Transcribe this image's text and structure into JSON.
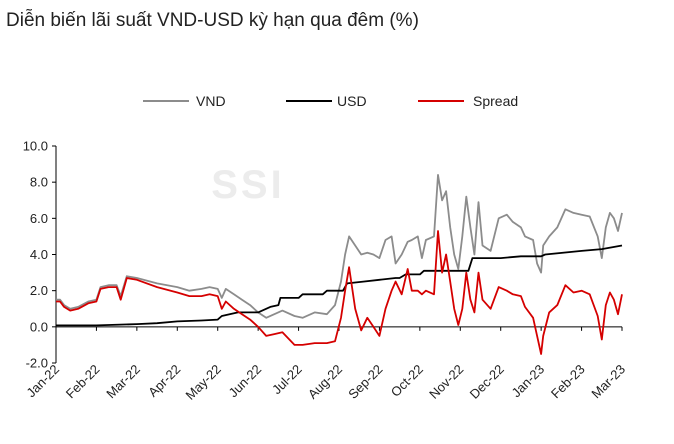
{
  "chart_data": {
    "type": "line",
    "title": "Diễn biến lãi suất VND-USD kỳ hạn qua đêm (%)",
    "watermark": "SSI",
    "xlabel": "",
    "ylabel": "",
    "ylim": [
      -2.0,
      10.0
    ],
    "yticks": [
      "10.0",
      "8.0",
      "6.0",
      "4.0",
      "2.0",
      "0.0",
      "-2.0"
    ],
    "xticks": [
      "Jan-22",
      "Feb-22",
      "Mar-22",
      "Apr-22",
      "May-22",
      "Jun-22",
      "Jul-22",
      "Aug-22",
      "Sep-22",
      "Oct-22",
      "Nov-22",
      "Dec-22",
      "Jan-23",
      "Feb-23",
      "Mar-23"
    ],
    "legend_position": "top",
    "grid": false,
    "series": [
      {
        "name": "VND",
        "color": "#8c8c8c",
        "points": [
          [
            0.0,
            1.5
          ],
          [
            0.1,
            1.5
          ],
          [
            0.2,
            1.2
          ],
          [
            0.35,
            1.0
          ],
          [
            0.55,
            1.1
          ],
          [
            0.8,
            1.4
          ],
          [
            1.0,
            1.5
          ],
          [
            1.1,
            2.2
          ],
          [
            1.3,
            2.3
          ],
          [
            1.5,
            2.3
          ],
          [
            1.6,
            1.7
          ],
          [
            1.75,
            2.8
          ],
          [
            2.0,
            2.7
          ],
          [
            2.5,
            2.4
          ],
          [
            3.0,
            2.2
          ],
          [
            3.3,
            2.0
          ],
          [
            3.6,
            2.1
          ],
          [
            3.8,
            2.2
          ],
          [
            4.0,
            2.1
          ],
          [
            4.1,
            1.6
          ],
          [
            4.2,
            2.1
          ],
          [
            4.4,
            1.8
          ],
          [
            4.6,
            1.5
          ],
          [
            4.8,
            1.2
          ],
          [
            5.0,
            0.8
          ],
          [
            5.2,
            0.5
          ],
          [
            5.4,
            0.7
          ],
          [
            5.6,
            0.9
          ],
          [
            5.9,
            0.6
          ],
          [
            6.1,
            0.5
          ],
          [
            6.4,
            0.8
          ],
          [
            6.7,
            0.7
          ],
          [
            6.9,
            1.2
          ],
          [
            7.05,
            2.5
          ],
          [
            7.15,
            4.0
          ],
          [
            7.25,
            5.0
          ],
          [
            7.4,
            4.5
          ],
          [
            7.55,
            4.0
          ],
          [
            7.7,
            4.1
          ],
          [
            7.85,
            4.0
          ],
          [
            8.0,
            3.8
          ],
          [
            8.15,
            4.8
          ],
          [
            8.3,
            5.0
          ],
          [
            8.4,
            3.5
          ],
          [
            8.55,
            4.0
          ],
          [
            8.7,
            4.7
          ],
          [
            8.8,
            4.8
          ],
          [
            8.95,
            5.0
          ],
          [
            9.05,
            3.8
          ],
          [
            9.15,
            4.8
          ],
          [
            9.35,
            5.0
          ],
          [
            9.45,
            8.4
          ],
          [
            9.55,
            7.0
          ],
          [
            9.65,
            7.5
          ],
          [
            9.75,
            5.5
          ],
          [
            9.85,
            4.0
          ],
          [
            9.95,
            3.2
          ],
          [
            10.05,
            5.0
          ],
          [
            10.15,
            7.2
          ],
          [
            10.25,
            5.5
          ],
          [
            10.35,
            4.0
          ],
          [
            10.45,
            6.9
          ],
          [
            10.55,
            4.5
          ],
          [
            10.75,
            4.2
          ],
          [
            10.95,
            6.0
          ],
          [
            11.15,
            6.2
          ],
          [
            11.3,
            5.8
          ],
          [
            11.5,
            5.5
          ],
          [
            11.6,
            5.0
          ],
          [
            11.8,
            4.8
          ],
          [
            11.9,
            3.5
          ],
          [
            12.0,
            3.0
          ],
          [
            12.05,
            4.5
          ],
          [
            12.2,
            5.0
          ],
          [
            12.4,
            5.5
          ],
          [
            12.6,
            6.5
          ],
          [
            12.8,
            6.3
          ],
          [
            13.0,
            6.2
          ],
          [
            13.2,
            6.1
          ],
          [
            13.4,
            5.0
          ],
          [
            13.5,
            3.8
          ],
          [
            13.6,
            5.5
          ],
          [
            13.7,
            6.3
          ],
          [
            13.8,
            6.0
          ],
          [
            13.9,
            5.3
          ],
          [
            14.0,
            6.3
          ]
        ]
      },
      {
        "name": "USD",
        "color": "#000000",
        "points": [
          [
            0.0,
            0.08
          ],
          [
            1.0,
            0.08
          ],
          [
            2.0,
            0.15
          ],
          [
            2.5,
            0.2
          ],
          [
            3.0,
            0.3
          ],
          [
            3.6,
            0.35
          ],
          [
            4.0,
            0.4
          ],
          [
            4.1,
            0.6
          ],
          [
            4.5,
            0.8
          ],
          [
            5.0,
            0.8
          ],
          [
            5.3,
            1.1
          ],
          [
            5.5,
            1.2
          ],
          [
            5.55,
            1.6
          ],
          [
            6.0,
            1.6
          ],
          [
            6.1,
            1.8
          ],
          [
            6.6,
            1.8
          ],
          [
            6.7,
            2.0
          ],
          [
            7.1,
            2.0
          ],
          [
            7.2,
            2.4
          ],
          [
            7.6,
            2.5
          ],
          [
            8.0,
            2.6
          ],
          [
            8.4,
            2.7
          ],
          [
            8.5,
            2.7
          ],
          [
            8.65,
            2.9
          ],
          [
            9.0,
            2.9
          ],
          [
            9.1,
            3.1
          ],
          [
            10.2,
            3.1
          ],
          [
            10.3,
            3.8
          ],
          [
            11.0,
            3.8
          ],
          [
            11.5,
            3.9
          ],
          [
            12.0,
            3.9
          ],
          [
            12.1,
            4.0
          ],
          [
            13.0,
            4.2
          ],
          [
            13.5,
            4.3
          ],
          [
            14.0,
            4.5
          ]
        ]
      },
      {
        "name": "Spread",
        "color": "#d50000",
        "points": [
          [
            0.0,
            1.4
          ],
          [
            0.1,
            1.4
          ],
          [
            0.2,
            1.1
          ],
          [
            0.35,
            0.9
          ],
          [
            0.55,
            1.0
          ],
          [
            0.8,
            1.3
          ],
          [
            1.0,
            1.4
          ],
          [
            1.1,
            2.1
          ],
          [
            1.3,
            2.2
          ],
          [
            1.5,
            2.2
          ],
          [
            1.6,
            1.5
          ],
          [
            1.75,
            2.7
          ],
          [
            2.0,
            2.6
          ],
          [
            2.5,
            2.2
          ],
          [
            3.0,
            1.9
          ],
          [
            3.3,
            1.7
          ],
          [
            3.6,
            1.7
          ],
          [
            3.8,
            1.8
          ],
          [
            4.0,
            1.7
          ],
          [
            4.1,
            1.0
          ],
          [
            4.2,
            1.4
          ],
          [
            4.4,
            1.0
          ],
          [
            4.6,
            0.7
          ],
          [
            4.8,
            0.4
          ],
          [
            5.0,
            0.0
          ],
          [
            5.2,
            -0.5
          ],
          [
            5.4,
            -0.4
          ],
          [
            5.6,
            -0.3
          ],
          [
            5.9,
            -1.0
          ],
          [
            6.1,
            -1.0
          ],
          [
            6.4,
            -0.9
          ],
          [
            6.7,
            -0.9
          ],
          [
            6.9,
            -0.8
          ],
          [
            7.05,
            0.5
          ],
          [
            7.15,
            2.0
          ],
          [
            7.25,
            3.3
          ],
          [
            7.4,
            1.0
          ],
          [
            7.55,
            -0.2
          ],
          [
            7.7,
            0.5
          ],
          [
            7.85,
            0.0
          ],
          [
            8.0,
            -0.5
          ],
          [
            8.15,
            1.0
          ],
          [
            8.3,
            2.0
          ],
          [
            8.4,
            2.5
          ],
          [
            8.55,
            1.8
          ],
          [
            8.7,
            3.2
          ],
          [
            8.8,
            2.0
          ],
          [
            8.95,
            2.0
          ],
          [
            9.05,
            1.8
          ],
          [
            9.15,
            2.0
          ],
          [
            9.35,
            1.8
          ],
          [
            9.45,
            5.3
          ],
          [
            9.55,
            3.0
          ],
          [
            9.65,
            4.0
          ],
          [
            9.75,
            2.5
          ],
          [
            9.85,
            1.0
          ],
          [
            9.95,
            0.1
          ],
          [
            10.05,
            1.0
          ],
          [
            10.15,
            3.0
          ],
          [
            10.25,
            1.5
          ],
          [
            10.35,
            0.8
          ],
          [
            10.45,
            3.0
          ],
          [
            10.55,
            1.5
          ],
          [
            10.75,
            1.0
          ],
          [
            10.95,
            2.2
          ],
          [
            11.15,
            2.0
          ],
          [
            11.3,
            1.8
          ],
          [
            11.5,
            1.7
          ],
          [
            11.6,
            1.1
          ],
          [
            11.8,
            0.5
          ],
          [
            11.9,
            -0.5
          ],
          [
            12.0,
            -1.5
          ],
          [
            12.05,
            -0.5
          ],
          [
            12.2,
            0.8
          ],
          [
            12.4,
            1.2
          ],
          [
            12.6,
            2.3
          ],
          [
            12.8,
            1.9
          ],
          [
            13.0,
            2.0
          ],
          [
            13.2,
            1.8
          ],
          [
            13.4,
            0.6
          ],
          [
            13.5,
            -0.7
          ],
          [
            13.6,
            1.2
          ],
          [
            13.7,
            1.9
          ],
          [
            13.8,
            1.5
          ],
          [
            13.9,
            0.7
          ],
          [
            14.0,
            1.8
          ]
        ]
      }
    ]
  }
}
